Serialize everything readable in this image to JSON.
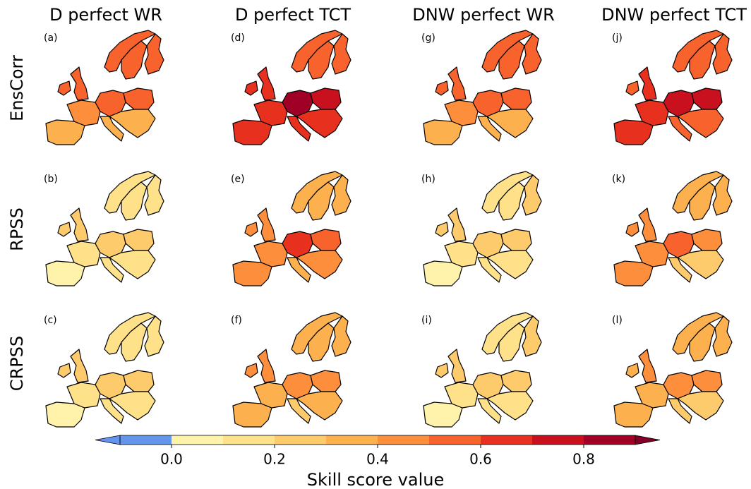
{
  "columns": [
    "D perfect WR",
    "D perfect TCT",
    "DNW perfect WR",
    "DNW perfect TCT"
  ],
  "rows": [
    "EnsCorr",
    "RPSS",
    "CRPSS"
  ],
  "panels": [
    [
      {
        "label": "(a)",
        "values": [
          0.55,
          0.55,
          0.55,
          0.55,
          0.5,
          0.35,
          0.45,
          0.5,
          0.5,
          0.35,
          0.35
        ]
      },
      {
        "label": "(d)",
        "values": [
          0.55,
          0.5,
          0.55,
          0.65,
          0.6,
          0.65,
          0.65,
          0.85,
          0.75,
          0.65,
          0.6
        ]
      },
      {
        "label": "(g)",
        "values": [
          0.55,
          0.55,
          0.55,
          0.5,
          0.5,
          0.35,
          0.45,
          0.5,
          0.5,
          0.35,
          0.35
        ]
      },
      {
        "label": "(j)",
        "values": [
          0.55,
          0.5,
          0.55,
          0.65,
          0.55,
          0.65,
          0.65,
          0.75,
          0.75,
          0.55,
          0.55
        ]
      }
    ],
    [
      {
        "label": "(b)",
        "values": [
          0.15,
          0.15,
          0.15,
          0.25,
          0.2,
          0.05,
          0.15,
          0.25,
          0.25,
          0.15,
          0.15
        ]
      },
      {
        "label": "(e)",
        "values": [
          0.3,
          0.35,
          0.35,
          0.45,
          0.45,
          0.45,
          0.45,
          0.65,
          0.55,
          0.35,
          0.45
        ]
      },
      {
        "label": "(h)",
        "values": [
          0.15,
          0.15,
          0.2,
          0.25,
          0.2,
          0.05,
          0.15,
          0.2,
          0.25,
          0.15,
          0.15
        ]
      },
      {
        "label": "(k)",
        "values": [
          0.35,
          0.35,
          0.35,
          0.45,
          0.45,
          0.45,
          0.45,
          0.55,
          0.45,
          0.25,
          0.25
        ]
      }
    ],
    [
      {
        "label": "(c)",
        "values": [
          0.15,
          0.15,
          0.15,
          0.2,
          0.2,
          0.05,
          0.15,
          0.25,
          0.25,
          0.15,
          0.1
        ]
      },
      {
        "label": "(f)",
        "values": [
          0.3,
          0.3,
          0.3,
          0.4,
          0.4,
          0.35,
          0.35,
          0.45,
          0.45,
          0.25,
          0.3
        ]
      },
      {
        "label": "(i)",
        "values": [
          0.15,
          0.15,
          0.25,
          0.2,
          0.2,
          0.05,
          0.15,
          0.2,
          0.25,
          0.15,
          0.1
        ]
      },
      {
        "label": "(l)",
        "values": [
          0.3,
          0.3,
          0.3,
          0.4,
          0.35,
          0.35,
          0.35,
          0.45,
          0.45,
          0.2,
          0.2
        ]
      }
    ]
  ],
  "colorbar": {
    "label": "Skill score value",
    "bounds": [
      -0.1,
      0,
      0.1,
      0.2,
      0.3,
      0.4,
      0.5,
      0.6,
      0.7,
      0.8,
      0.9
    ],
    "colors": [
      "#6495ed",
      "#fff2aa",
      "#fee189",
      "#fecb6c",
      "#fdb04e",
      "#fc8e3c",
      "#f8622d",
      "#e8301f",
      "#c9101f",
      "#a00026"
    ],
    "under_color": "#6495ed",
    "over_color": "#800026",
    "ticks": [
      {
        "value": 0,
        "label": "0.0"
      },
      {
        "value": 0.2,
        "label": "0.2"
      },
      {
        "value": 0.4,
        "label": "0.4"
      },
      {
        "value": 0.6,
        "label": "0.6"
      },
      {
        "value": 0.8,
        "label": "0.8"
      }
    ]
  }
}
